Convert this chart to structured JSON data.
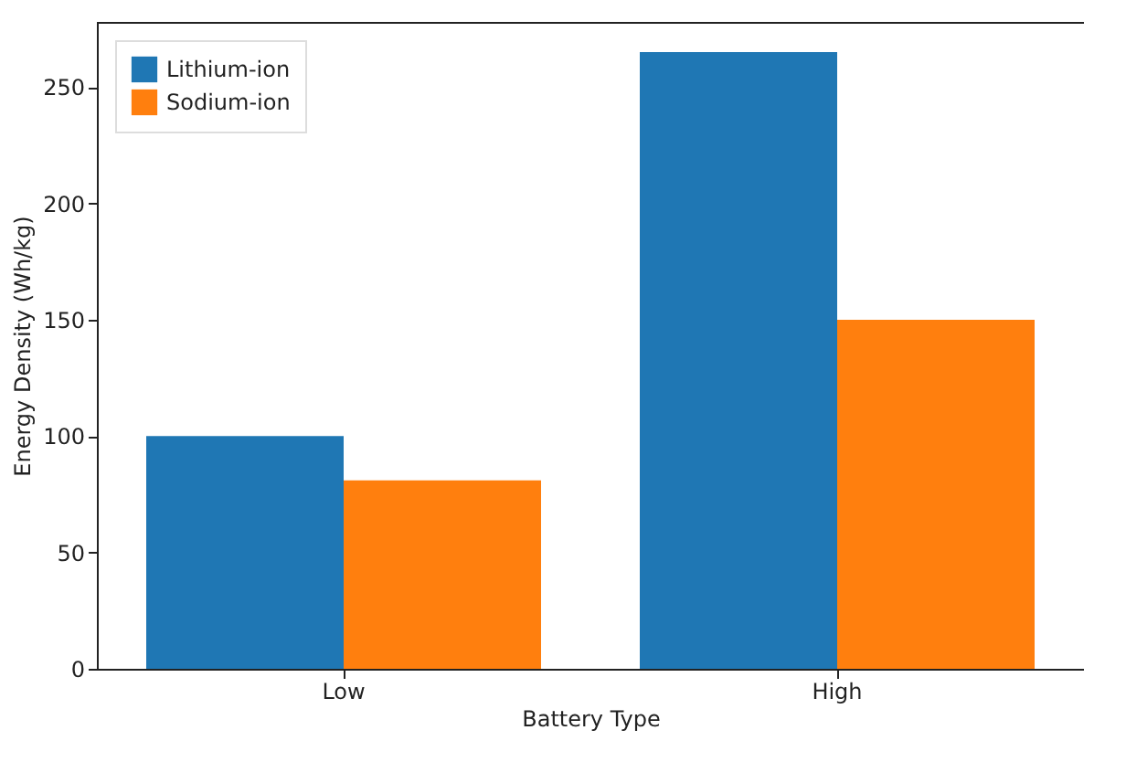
{
  "chart_data": {
    "type": "bar",
    "xlabel": "Battery Type",
    "ylabel": "Energy Density (Wh/kg)",
    "categories": [
      "Low",
      "High"
    ],
    "series": [
      {
        "name": "Lithium-ion",
        "color": "#1f77b4",
        "values": [
          100,
          265
        ]
      },
      {
        "name": "Sodium-ion",
        "color": "#ff7f0e",
        "values": [
          81,
          150
        ]
      }
    ],
    "ylim": [
      0,
      278
    ],
    "yticks": [
      0,
      50,
      100,
      150,
      200,
      250
    ],
    "legend": "top left",
    "grid": false
  }
}
